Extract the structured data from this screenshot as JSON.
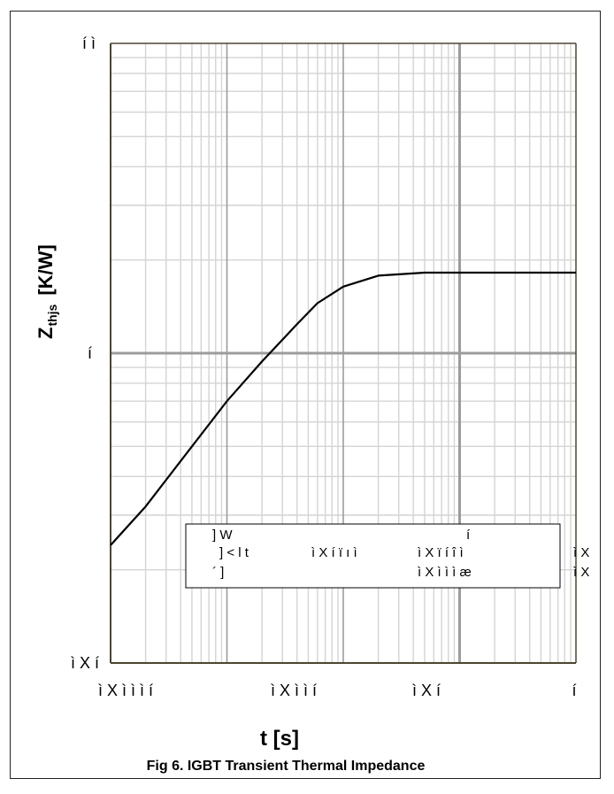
{
  "chart_data": {
    "type": "line",
    "title": "Fig 6. IGBT Transient Thermal Impedance",
    "xlabel": "t [s]",
    "ylabel_main": "Z",
    "ylabel_sub": "thjs",
    "ylabel_unit": "[K/W]",
    "xscale": "log",
    "yscale": "log",
    "xlim": [
      0.0001,
      1
    ],
    "ylim": [
      0.01,
      1
    ],
    "x_tick_labels": [
      "ì X ì ì ì í",
      "ì X ì ì í",
      "ì X í",
      "í"
    ],
    "y_tick_labels": [
      "í ì",
      "í",
      "ì X í"
    ],
    "grid": true,
    "legend": "none",
    "series": [
      {
        "x": [
          0.0001,
          0.0002,
          0.0005,
          0.001,
          0.002,
          0.004,
          0.006,
          0.01,
          0.02,
          0.05,
          0.1,
          0.2,
          0.5,
          1
        ],
        "values": [
          0.024,
          0.032,
          0.05,
          0.07,
          0.094,
          0.124,
          0.145,
          0.164,
          0.178,
          0.182,
          0.182,
          0.182,
          0.182,
          0.182
        ]
      }
    ],
    "table_box": {
      "rows": [
        [
          "] W",
          "",
          "í",
          ""
        ],
        [
          "] < l t",
          "ì X í ï ı ì",
          "ì X ï í î ì",
          "ì X"
        ],
        [
          "´ ]",
          "",
          "ì X ì ì ì æ",
          "ì X"
        ]
      ]
    }
  },
  "colors": {
    "plot_background": "#ffffff",
    "grid_minor": "#d4d4d4",
    "grid_major": "#9c9c9c",
    "axis": "#4b4632",
    "curve": "#000000"
  }
}
